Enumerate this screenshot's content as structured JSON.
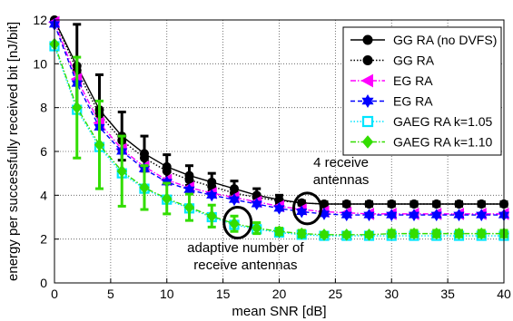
{
  "chart_data": {
    "type": "line",
    "xlabel": "mean SNR [dB]",
    "ylabel": "energy per successfully received bit [nJ/bit]",
    "xlim": [
      0,
      40
    ],
    "ylim": [
      0,
      12
    ],
    "xticks": [
      0,
      5,
      10,
      15,
      20,
      25,
      30,
      35,
      40
    ],
    "yticks": [
      0,
      2,
      4,
      6,
      8,
      10,
      12
    ],
    "grid": true,
    "legend_position": "top-right",
    "x": [
      0,
      2,
      4,
      6,
      8,
      10,
      12,
      14,
      16,
      18,
      20,
      22,
      24,
      26,
      28,
      30,
      32,
      34,
      36,
      38,
      40
    ],
    "series": [
      {
        "name": "GG RA (no DVFS)",
        "color": "#000000",
        "line": "solid",
        "marker": "circle",
        "filled": true,
        "values": [
          12.0,
          9.9,
          7.9,
          6.7,
          5.9,
          5.3,
          4.9,
          4.6,
          4.3,
          4.0,
          3.8,
          3.65,
          3.6,
          3.6,
          3.6,
          3.6,
          3.6,
          3.6,
          3.6,
          3.6,
          3.6
        ],
        "error": [
          0,
          1.9,
          1.6,
          1.1,
          0.8,
          0.55,
          0.45,
          0.4,
          0.35,
          0.3,
          0.2,
          0.1,
          0.1,
          0.1,
          0.1,
          0.1,
          0.1,
          0.1,
          0.1,
          0.1,
          0.1
        ]
      },
      {
        "name": "GG RA",
        "color": "#000000",
        "line": "dotted",
        "marker": "circle",
        "filled": true,
        "values": [
          12.0,
          9.7,
          7.7,
          6.5,
          5.7,
          5.1,
          4.7,
          4.4,
          4.1,
          3.9,
          3.75,
          3.65,
          3.6,
          3.6,
          3.6,
          3.6,
          3.6,
          3.6,
          3.6,
          3.6,
          3.6
        ],
        "error": [
          0,
          0,
          0,
          0,
          0,
          0,
          0,
          0,
          0,
          0,
          0,
          0,
          0,
          0,
          0,
          0,
          0,
          0,
          0,
          0,
          0
        ]
      },
      {
        "name": "EG RA",
        "color": "#ff00ff",
        "line": "dashdot",
        "marker": "triangle-left",
        "filled": true,
        "values": [
          11.9,
          9.3,
          7.3,
          6.1,
          5.3,
          4.7,
          4.35,
          4.1,
          3.9,
          3.7,
          3.5,
          3.35,
          3.25,
          3.2,
          3.15,
          3.15,
          3.15,
          3.15,
          3.15,
          3.15,
          3.15
        ],
        "error": [
          0,
          0,
          0,
          0,
          0,
          0,
          0,
          0,
          0,
          0,
          0,
          0,
          0,
          0,
          0,
          0,
          0,
          0,
          0,
          0,
          0
        ]
      },
      {
        "name": "EG RA",
        "color": "#0000ff",
        "line": "dashed",
        "marker": "hexagram",
        "filled": true,
        "values": [
          11.8,
          9.1,
          7.1,
          6.0,
          5.2,
          4.6,
          4.25,
          4.0,
          3.8,
          3.6,
          3.4,
          3.25,
          3.15,
          3.1,
          3.1,
          3.1,
          3.1,
          3.1,
          3.1,
          3.1,
          3.1
        ],
        "error": [
          0,
          0,
          0,
          0,
          0,
          0,
          0,
          0,
          0,
          0,
          0,
          0,
          0,
          0,
          0,
          0,
          0,
          0,
          0,
          0,
          0
        ]
      },
      {
        "name": "GAEG RA k=1.05",
        "color": "#00e5ff",
        "line": "dotted",
        "marker": "square",
        "filled": false,
        "values": [
          10.8,
          7.9,
          6.2,
          5.0,
          4.3,
          3.8,
          3.4,
          3.0,
          2.65,
          2.45,
          2.3,
          2.2,
          2.15,
          2.15,
          2.15,
          2.15,
          2.15,
          2.15,
          2.15,
          2.15,
          2.15
        ],
        "error": [
          0,
          0,
          0,
          0,
          0,
          0,
          0,
          0,
          0,
          0,
          0,
          0,
          0,
          0,
          0,
          0,
          0,
          0,
          0,
          0,
          0
        ]
      },
      {
        "name": "GAEG RA k=1.10",
        "color": "#33dd00",
        "line": "dashdot",
        "marker": "diamond",
        "filled": true,
        "values": [
          10.9,
          8.0,
          6.3,
          5.1,
          4.35,
          3.85,
          3.45,
          3.05,
          2.7,
          2.5,
          2.35,
          2.25,
          2.2,
          2.2,
          2.2,
          2.25,
          2.25,
          2.25,
          2.25,
          2.25,
          2.25
        ],
        "error": [
          0,
          2.3,
          2.0,
          1.6,
          1.0,
          0.7,
          0.6,
          0.5,
          0.35,
          0.25,
          0.15,
          0.15,
          0.1,
          0.1,
          0.1,
          0.15,
          0.15,
          0.15,
          0.15,
          0.15,
          0.15
        ]
      }
    ],
    "annotations": [
      {
        "text": "4 receive",
        "line2": "antennas",
        "x": 25.5,
        "y": 5.3,
        "ellipse_x": 22.5,
        "ellipse_y": 3.4
      },
      {
        "text": "adaptive number of",
        "line2": "receive antennas",
        "x": 17,
        "y": 1.4,
        "ellipse_x": 16.3,
        "ellipse_y": 2.75
      }
    ]
  }
}
